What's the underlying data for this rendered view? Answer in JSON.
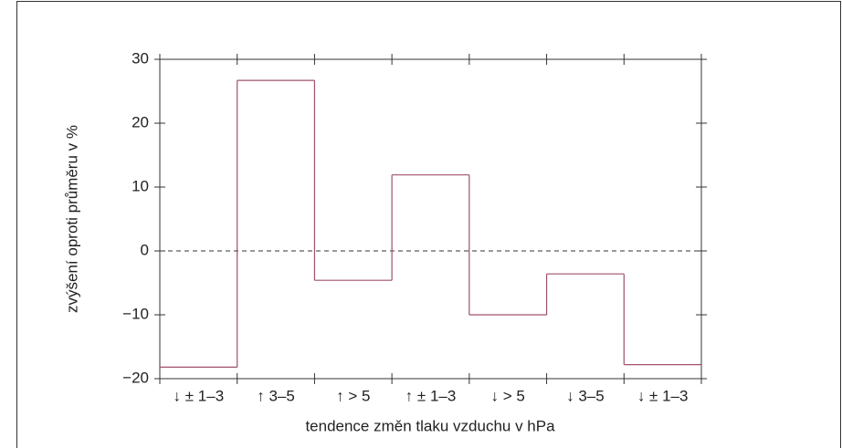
{
  "chart_data": {
    "type": "step",
    "y_label": "zvýšení oproti průměru v %",
    "x_label": "tendence změn tlaku vzduchu v hPa",
    "categories": [
      "↓ ± 1–3",
      "↑ 3–5",
      "↑ > 5",
      "↑ ± 1–3",
      "↓ > 5",
      "↓ 3–5",
      "↓ ± 1–3"
    ],
    "values": [
      -18.2,
      26.7,
      -4.6,
      11.9,
      -10.0,
      -3.6,
      -17.8
    ],
    "color": "#a0506e",
    "ylim": [
      -20,
      30
    ],
    "yticks": [
      {
        "value": -20,
        "label": "−20"
      },
      {
        "value": -10,
        "label": "−10"
      },
      0,
      10,
      20,
      30
    ],
    "zero_line": 0
  }
}
